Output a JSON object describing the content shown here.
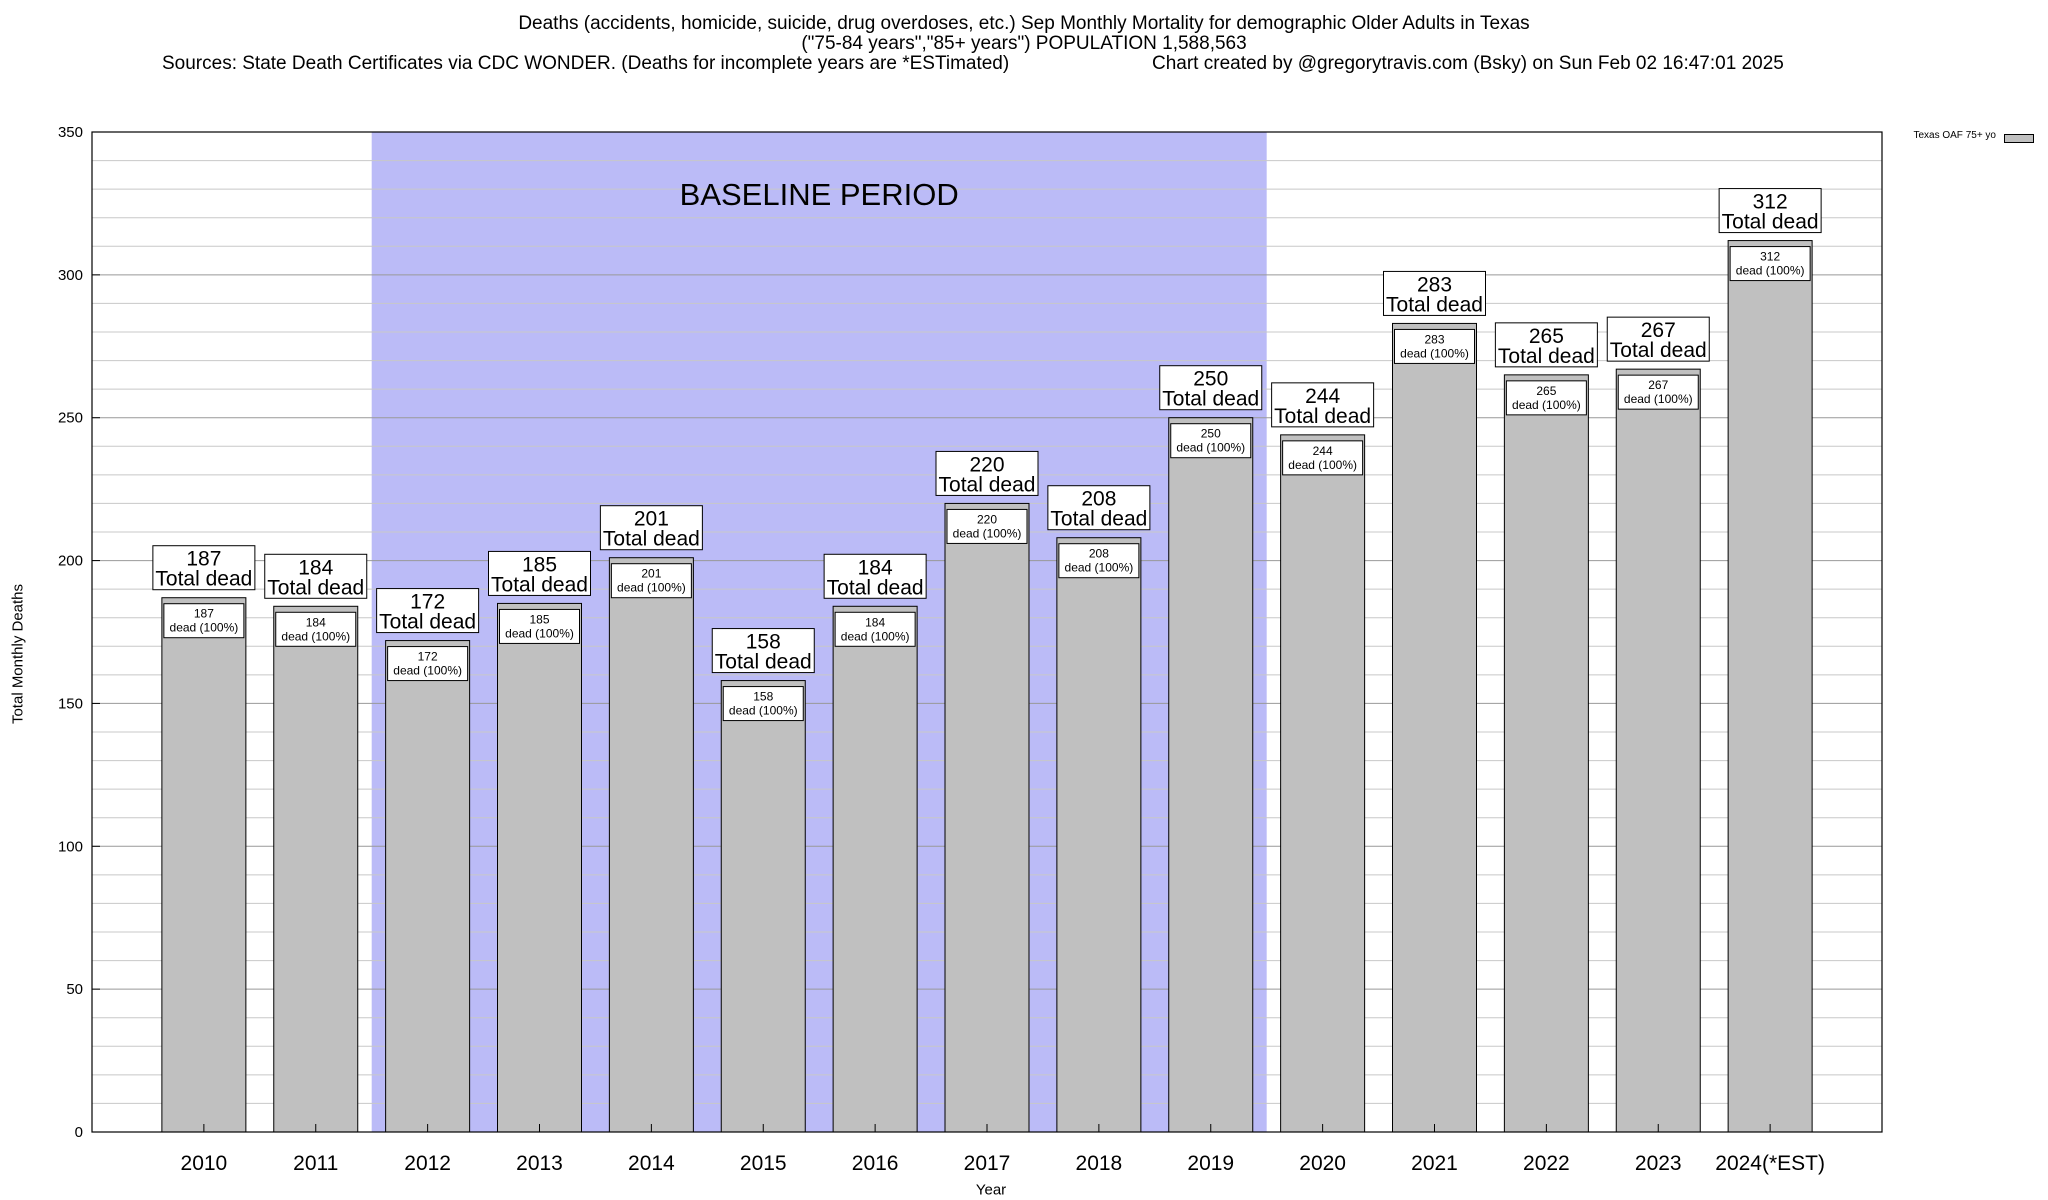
{
  "header": {
    "line1": "Deaths (accidents, homicide, suicide, drug overdoses, etc.) Sep Monthly Mortality for demographic Older Adults in Texas",
    "line2": "(\"75-84 years\",\"85+ years\") POPULATION 1,588,563",
    "sources": "Sources: State Death Certificates via CDC WONDER. (Deaths for incomplete years are *ESTimated)",
    "credit": "Chart created by @gregorytravis.com (Bsky) on Sun Feb 02 16:47:01 2025"
  },
  "chart_data": {
    "type": "bar",
    "categories": [
      "2010",
      "2011",
      "2012",
      "2013",
      "2014",
      "2015",
      "2016",
      "2017",
      "2018",
      "2019",
      "2020",
      "2021",
      "2022",
      "2023",
      "2024(*EST)"
    ],
    "series": [
      {
        "name": "Texas OAF 75+ yo",
        "color": "#c0c0c0",
        "values": [
          187,
          184,
          172,
          185,
          201,
          158,
          184,
          220,
          208,
          250,
          244,
          283,
          265,
          267,
          312
        ]
      }
    ],
    "total_label": "Total dead",
    "inner_label_suffix": "dead (100%)",
    "baseline": {
      "label": "BASELINE PERIOD",
      "from": "2012",
      "to": "2019",
      "color": "#bbbbf7"
    },
    "xlabel": "Year",
    "ylabel": "Total Monthly Deaths",
    "ylim": [
      0,
      350
    ],
    "yticks": [
      0,
      50,
      100,
      150,
      200,
      250,
      300,
      350
    ],
    "minor_step": 10,
    "grid": true,
    "legend_position": "top-right"
  }
}
